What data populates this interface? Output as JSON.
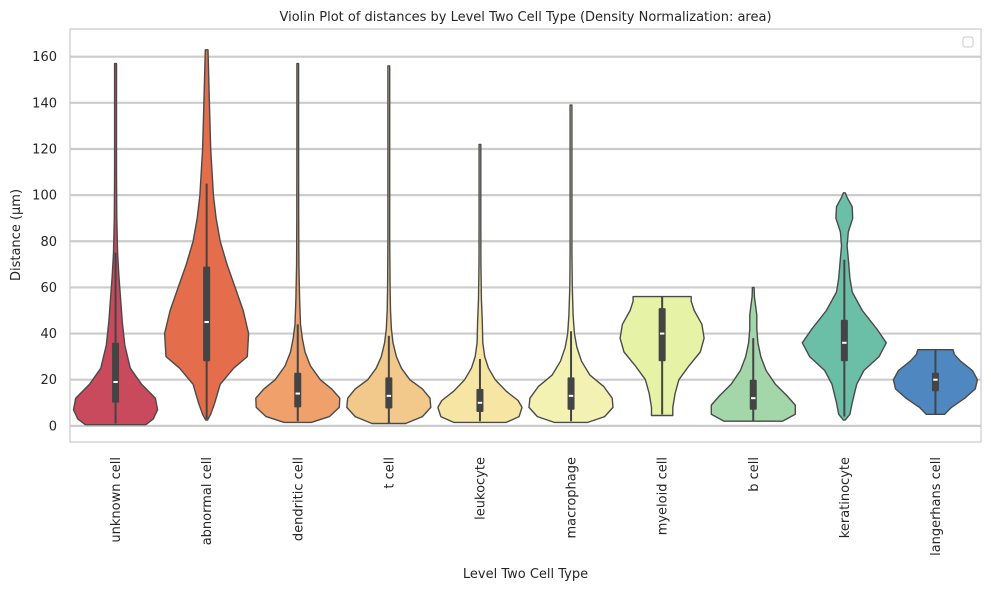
{
  "chart_data": {
    "type": "violin",
    "title": "Violin Plot of distances by Level Two Cell Type (Density Normalization: area)",
    "xlabel": "Level Two Cell Type",
    "ylabel": "Distance (µm)",
    "ylim": [
      -7,
      172
    ],
    "yticks": [
      0,
      20,
      40,
      60,
      80,
      100,
      120,
      140,
      160
    ],
    "grid": "horizontal",
    "legend": "top-right (empty)",
    "categories": [
      "unknown cell",
      "abnormal cell",
      "dendritic cell",
      "t cell",
      "leukocyte",
      "macrophage",
      "myeloid cell",
      "b cell",
      "keratinocyte",
      "langerhans cell"
    ],
    "series": [
      {
        "category": "unknown cell",
        "color": "#c84a5c",
        "min": 0.5,
        "max": 157,
        "q1": 10,
        "median": 19,
        "q3": 36,
        "whisker_low": 1,
        "whisker_high": 75,
        "profile": [
          [
            0.5,
            0.72
          ],
          [
            3,
            0.9
          ],
          [
            7,
            1.0
          ],
          [
            12,
            0.95
          ],
          [
            18,
            0.62
          ],
          [
            25,
            0.35
          ],
          [
            35,
            0.22
          ],
          [
            45,
            0.16
          ],
          [
            55,
            0.12
          ],
          [
            65,
            0.08
          ],
          [
            75,
            0.05
          ],
          [
            90,
            0.03
          ],
          [
            110,
            0.02
          ],
          [
            130,
            0.015
          ],
          [
            157,
            0.01
          ]
        ]
      },
      {
        "category": "abnormal cell",
        "color": "#e46d4b",
        "min": 2.5,
        "max": 163,
        "q1": 28,
        "median": 45,
        "q3": 69,
        "whisker_low": 3,
        "whisker_high": 105,
        "profile": [
          [
            2.5,
            0.0
          ],
          [
            5,
            0.03
          ],
          [
            10,
            0.06
          ],
          [
            18,
            0.1
          ],
          [
            25,
            0.2
          ],
          [
            30,
            0.3
          ],
          [
            40,
            0.31
          ],
          [
            50,
            0.27
          ],
          [
            60,
            0.21
          ],
          [
            70,
            0.15
          ],
          [
            80,
            0.1
          ],
          [
            90,
            0.07
          ],
          [
            100,
            0.05
          ],
          [
            120,
            0.03
          ],
          [
            140,
            0.02
          ],
          [
            163,
            0.01
          ]
        ]
      },
      {
        "category": "dendritic cell",
        "color": "#f0a06a",
        "min": 1.5,
        "max": 157,
        "q1": 8,
        "median": 14,
        "q3": 23,
        "whisker_low": 2,
        "whisker_high": 44,
        "profile": [
          [
            1.5,
            0.3
          ],
          [
            4,
            0.7
          ],
          [
            8,
            0.92
          ],
          [
            12,
            0.93
          ],
          [
            16,
            0.75
          ],
          [
            20,
            0.5
          ],
          [
            26,
            0.28
          ],
          [
            32,
            0.16
          ],
          [
            38,
            0.1
          ],
          [
            44,
            0.06
          ],
          [
            55,
            0.04
          ],
          [
            70,
            0.025
          ],
          [
            90,
            0.02
          ],
          [
            120,
            0.012
          ],
          [
            157,
            0.008
          ]
        ]
      },
      {
        "category": "t cell",
        "color": "#f2c98b",
        "min": 1,
        "max": 156,
        "q1": 7.5,
        "median": 13,
        "q3": 21,
        "whisker_low": 1,
        "whisker_high": 39,
        "profile": [
          [
            1,
            0.4
          ],
          [
            4,
            0.8
          ],
          [
            8,
            1.0
          ],
          [
            12,
            0.98
          ],
          [
            16,
            0.8
          ],
          [
            20,
            0.5
          ],
          [
            25,
            0.3
          ],
          [
            30,
            0.18
          ],
          [
            36,
            0.1
          ],
          [
            42,
            0.06
          ],
          [
            50,
            0.04
          ],
          [
            60,
            0.03
          ],
          [
            80,
            0.02
          ],
          [
            110,
            0.012
          ],
          [
            156,
            0.008
          ]
        ]
      },
      {
        "category": "leukocyte",
        "color": "#f7e6a3",
        "min": 1.5,
        "max": 122,
        "q1": 6,
        "median": 10,
        "q3": 16,
        "whisker_low": 2,
        "whisker_high": 29,
        "profile": [
          [
            1.5,
            0.55
          ],
          [
            4,
            0.82
          ],
          [
            8,
            0.88
          ],
          [
            11,
            0.8
          ],
          [
            15,
            0.55
          ],
          [
            20,
            0.32
          ],
          [
            25,
            0.18
          ],
          [
            30,
            0.1
          ],
          [
            36,
            0.06
          ],
          [
            45,
            0.05
          ],
          [
            55,
            0.03
          ],
          [
            70,
            0.02
          ],
          [
            90,
            0.015
          ],
          [
            122,
            0.008
          ]
        ]
      },
      {
        "category": "macrophage",
        "color": "#f4f2b2",
        "min": 1.5,
        "max": 139,
        "q1": 7,
        "median": 13,
        "q3": 21,
        "whisker_low": 2,
        "whisker_high": 41,
        "profile": [
          [
            1.5,
            0.4
          ],
          [
            4,
            0.8
          ],
          [
            8,
            1.0
          ],
          [
            12,
            0.98
          ],
          [
            17,
            0.78
          ],
          [
            22,
            0.45
          ],
          [
            28,
            0.25
          ],
          [
            34,
            0.14
          ],
          [
            40,
            0.08
          ],
          [
            48,
            0.05
          ],
          [
            60,
            0.03
          ],
          [
            75,
            0.02
          ],
          [
            100,
            0.012
          ],
          [
            139,
            0.008
          ]
        ]
      },
      {
        "category": "myeloid cell",
        "color": "#e6f2a5",
        "min": 4.5,
        "max": 56,
        "q1": 28,
        "median": 40,
        "q3": 51,
        "whisker_low": 5,
        "whisker_high": 56,
        "profile": [
          [
            4.5,
            0.14
          ],
          [
            8,
            0.14
          ],
          [
            14,
            0.17
          ],
          [
            20,
            0.22
          ],
          [
            26,
            0.35
          ],
          [
            32,
            0.5
          ],
          [
            38,
            0.55
          ],
          [
            44,
            0.52
          ],
          [
            50,
            0.42
          ],
          [
            54,
            0.38
          ],
          [
            56,
            0.38
          ]
        ]
      },
      {
        "category": "b cell",
        "color": "#a3d6a8",
        "min": 2,
        "max": 60,
        "q1": 7,
        "median": 12,
        "q3": 20,
        "whisker_low": 2,
        "whisker_high": 38,
        "profile": [
          [
            2,
            0.5
          ],
          [
            5,
            0.72
          ],
          [
            9,
            0.72
          ],
          [
            13,
            0.58
          ],
          [
            18,
            0.38
          ],
          [
            24,
            0.22
          ],
          [
            30,
            0.13
          ],
          [
            36,
            0.08
          ],
          [
            42,
            0.06
          ],
          [
            48,
            0.06
          ],
          [
            52,
            0.04
          ],
          [
            56,
            0.02
          ],
          [
            60,
            0.01
          ]
        ]
      },
      {
        "category": "keratinocyte",
        "color": "#6cbfa7",
        "min": 2.5,
        "max": 101,
        "q1": 28,
        "median": 36,
        "q3": 46,
        "whisker_low": 4,
        "whisker_high": 72,
        "profile": [
          [
            2.5,
            0.0
          ],
          [
            5,
            0.1
          ],
          [
            10,
            0.14
          ],
          [
            18,
            0.22
          ],
          [
            24,
            0.35
          ],
          [
            30,
            0.62
          ],
          [
            36,
            0.75
          ],
          [
            42,
            0.58
          ],
          [
            50,
            0.32
          ],
          [
            58,
            0.14
          ],
          [
            64,
            0.1
          ],
          [
            70,
            0.08
          ],
          [
            78,
            0.05
          ],
          [
            84,
            0.07
          ],
          [
            90,
            0.15
          ],
          [
            95,
            0.14
          ],
          [
            99,
            0.05
          ],
          [
            101,
            0.0
          ]
        ]
      },
      {
        "category": "langerhans cell",
        "color": "#4f87c0",
        "min": 5,
        "max": 33,
        "q1": 15,
        "median": 20,
        "q3": 23,
        "whisker_low": 5,
        "whisker_high": 33,
        "profile": [
          [
            5,
            0.22
          ],
          [
            8,
            0.38
          ],
          [
            12,
            0.7
          ],
          [
            16,
            0.95
          ],
          [
            20,
            1.0
          ],
          [
            24,
            0.88
          ],
          [
            28,
            0.6
          ],
          [
            31,
            0.45
          ],
          [
            33,
            0.42
          ]
        ]
      }
    ]
  }
}
